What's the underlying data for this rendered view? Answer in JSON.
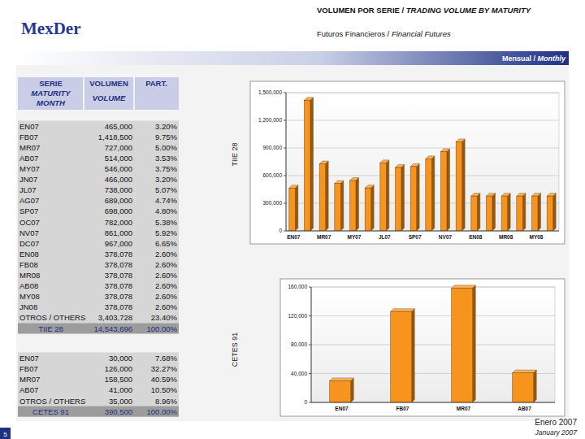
{
  "logo": "MexDer",
  "header": {
    "title": "VOLUMEN POR SERIE / ",
    "title_en": "TRADING VOLUME BY MATURITY",
    "subtitle": "Futuros Financieros / ",
    "subtitle_en": "Financial Futures",
    "period": "Mensual / ",
    "period_en": "Monthly"
  },
  "table_header": {
    "serie": "SERIE",
    "maturity": "MATURITY",
    "month": "MONTH",
    "volumen": "VOLUMEN",
    "volume": "VOLUME",
    "part": "PART."
  },
  "tables": [
    {
      "rows": [
        [
          "EN07",
          "465,000",
          "3.20%"
        ],
        [
          "FB07",
          "1,418,500",
          "9.75%"
        ],
        [
          "MR07",
          "727,000",
          "5.00%"
        ],
        [
          "AB07",
          "514,000",
          "3.53%"
        ],
        [
          "MY07",
          "546,000",
          "3.75%"
        ],
        [
          "JN07",
          "466,000",
          "3.20%"
        ],
        [
          "JL07",
          "738,000",
          "5.07%"
        ],
        [
          "AG07",
          "689,000",
          "4.74%"
        ],
        [
          "SP07",
          "698,000",
          "4.80%"
        ],
        [
          "OC07",
          "782,000",
          "5.38%"
        ],
        [
          "NV07",
          "861,000",
          "5.92%"
        ],
        [
          "DC07",
          "967,000",
          "6.65%"
        ],
        [
          "EN08",
          "378,078",
          "2.60%"
        ],
        [
          "FB08",
          "378,078",
          "2.60%"
        ],
        [
          "MR08",
          "378,078",
          "2.60%"
        ],
        [
          "AB08",
          "378,078",
          "2.60%"
        ],
        [
          "MY08",
          "378,078",
          "2.60%"
        ],
        [
          "JN08",
          "378,078",
          "2.60%"
        ],
        [
          "OTROS / OTHERS",
          "3,403,728",
          "23.40%"
        ]
      ],
      "total": [
        "TIIE 28",
        "14,543,696",
        "100.00%"
      ]
    },
    {
      "rows": [
        [
          "EN07",
          "30,000",
          "7.68%"
        ],
        [
          "FB07",
          "126,000",
          "32.27%"
        ],
        [
          "MR07",
          "158,500",
          "40.59%"
        ],
        [
          "AB07",
          "41,000",
          "10.50%"
        ],
        [
          "OTROS / OTHERS",
          "35,000",
          "8.96%"
        ]
      ],
      "total": [
        "CETES 91",
        "390,500",
        "100.00%"
      ]
    }
  ],
  "chart_data": [
    {
      "type": "bar",
      "y_label": "TIIE 28",
      "categories": [
        "EN07",
        null,
        "MR07",
        null,
        "MY07",
        null,
        "JL07",
        null,
        "SP07",
        null,
        "NV07",
        null,
        "EN08",
        null,
        "MR08",
        null,
        "MY08",
        null
      ],
      "values": [
        465000,
        1418500,
        727000,
        514000,
        546000,
        466000,
        738000,
        689000,
        698000,
        782000,
        861000,
        967000,
        378078,
        378078,
        378078,
        378078,
        378078,
        378078
      ],
      "color": "#f7941d",
      "ylim": [
        0,
        1500000
      ],
      "yticks": [
        0,
        {
          "value": 300000,
          "label": "300,000"
        },
        {
          "value": 600000,
          "label": "600,000"
        },
        {
          "value": 900000,
          "label": "900,000"
        },
        {
          "value": 1200000,
          "label": "1,200,000"
        },
        {
          "value": 1500000,
          "label": "1,500,000"
        }
      ],
      "grid": true
    },
    {
      "type": "bar",
      "y_label": "CETES 91",
      "categories": [
        "EN07",
        "FB07",
        "MR07",
        "AB07"
      ],
      "values": [
        30000,
        126000,
        158500,
        41000
      ],
      "color": "#f7941d",
      "ylim": [
        0,
        160000
      ],
      "yticks": [
        0,
        {
          "value": 40000,
          "label": "40,000"
        },
        {
          "value": 80000,
          "label": "80,000"
        },
        {
          "value": 120000,
          "label": "120,000"
        },
        {
          "value": 160000,
          "label": "160,000"
        }
      ],
      "grid": true
    }
  ],
  "footer": {
    "month": "Enero 2007",
    "month_en": "January 2007",
    "page": "5"
  }
}
